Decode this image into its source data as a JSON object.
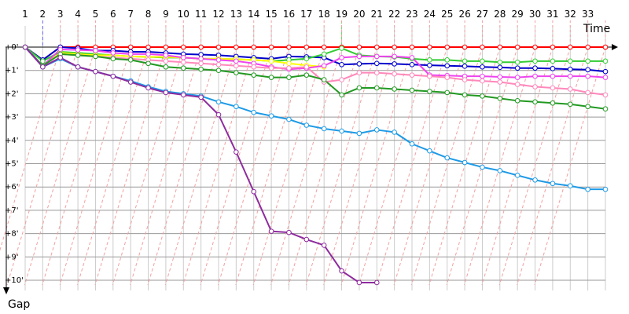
{
  "chart_data": {
    "type": "line",
    "x_axis_title": "Time",
    "y_axis_title": "Gap",
    "x_ticks": [
      "1",
      "2",
      "3",
      "4",
      "5",
      "6",
      "7",
      "8",
      "9",
      "10",
      "11",
      "12",
      "13",
      "14",
      "15",
      "16",
      "17",
      "18",
      "19",
      "20",
      "21",
      "22",
      "23",
      "24",
      "25",
      "26",
      "27",
      "28",
      "29",
      "30",
      "31",
      "32",
      "33"
    ],
    "y_ticks": [
      "+0'",
      "+1'",
      "+2'",
      "+3'",
      "+4'",
      "+5'",
      "+6'",
      "+7'",
      "+8'",
      "+9'",
      "+10'"
    ],
    "x_range": [
      1,
      34
    ],
    "y_range": [
      0,
      10
    ],
    "y_unit": "minutes",
    "grid": true,
    "series": [
      {
        "color": "#ff0000",
        "x": [
          1,
          2,
          3,
          4,
          5,
          6,
          7,
          8,
          9,
          10,
          11,
          12,
          13,
          14,
          15,
          16,
          17,
          18,
          19,
          20,
          21,
          22,
          23,
          24,
          25,
          26,
          27,
          28,
          29,
          30,
          31,
          32,
          33,
          34
        ],
        "y": [
          0,
          0.55,
          0,
          0,
          0,
          0,
          0,
          0,
          0,
          0,
          0,
          0,
          0,
          0,
          0,
          0,
          0,
          0,
          0,
          0,
          0,
          0,
          0,
          0,
          0,
          0,
          0,
          0,
          0,
          0,
          0,
          0,
          0,
          0
        ]
      },
      {
        "color": "#0000cc",
        "x": [
          1,
          2,
          3,
          4,
          5,
          6,
          7,
          8,
          9,
          10,
          11,
          12,
          13,
          14,
          15,
          16,
          17,
          18,
          19,
          20,
          21,
          22,
          23,
          24,
          25,
          26,
          27,
          28,
          29,
          30,
          31,
          32,
          33,
          34
        ],
        "y": [
          0,
          0.55,
          0,
          0.05,
          0.15,
          0.15,
          0.2,
          0.2,
          0.25,
          0.3,
          0.32,
          0.35,
          0.4,
          0.45,
          0.5,
          0.4,
          0.42,
          0.45,
          0.75,
          0.72,
          0.7,
          0.72,
          0.75,
          0.78,
          0.8,
          0.82,
          0.85,
          0.87,
          0.9,
          0.9,
          0.92,
          0.95,
          0.97,
          1.05
        ]
      },
      {
        "color": "#33cc33",
        "x": [
          1,
          2,
          3,
          4,
          5,
          6,
          7,
          8,
          9,
          10,
          11,
          12,
          13,
          14,
          15,
          16,
          17,
          18,
          19,
          20,
          21,
          22,
          23,
          24,
          25,
          26,
          27,
          28,
          29,
          30,
          31,
          32,
          33,
          34
        ],
        "y": [
          0,
          0.6,
          0.2,
          0.25,
          0.3,
          0.35,
          0.4,
          0.42,
          0.45,
          0.45,
          0.5,
          0.5,
          0.52,
          0.55,
          0.6,
          0.55,
          0.5,
          0.3,
          0.05,
          0.35,
          0.4,
          0.42,
          0.5,
          0.55,
          0.55,
          0.6,
          0.6,
          0.65,
          0.65,
          0.6,
          0.6,
          0.6,
          0.6,
          0.6
        ]
      },
      {
        "color": "#ffff00",
        "x": [
          1,
          2,
          3,
          4,
          5,
          6,
          7,
          8,
          9,
          10,
          11,
          12,
          13,
          14,
          15,
          16,
          17,
          18
        ],
        "y": [
          0,
          0.8,
          0.25,
          0.3,
          0.35,
          0.35,
          0.4,
          0.42,
          0.42,
          0.45,
          0.5,
          0.5,
          0.52,
          0.55,
          0.6,
          0.7,
          0.78,
          0.85
        ]
      },
      {
        "color": "#ee44ee",
        "x": [
          1,
          2,
          3,
          4,
          5,
          6,
          7,
          8,
          9,
          10,
          11,
          12,
          13,
          14,
          15,
          16,
          17,
          18,
          19,
          20,
          21,
          22,
          23,
          24,
          25,
          26,
          27,
          28,
          29,
          30,
          31,
          32,
          33,
          34
        ],
        "y": [
          0,
          0.8,
          0.1,
          0.12,
          0.15,
          0.25,
          0.3,
          0.3,
          0.35,
          0.45,
          0.5,
          0.55,
          0.6,
          0.7,
          0.85,
          0.95,
          0.9,
          0.8,
          0.45,
          0.4,
          0.4,
          0.4,
          0.45,
          1.2,
          1.22,
          1.25,
          1.25,
          1.28,
          1.3,
          1.25,
          1.25,
          1.25,
          1.25,
          1.3
        ]
      },
      {
        "color": "#ff88bb",
        "x": [
          1,
          2,
          3,
          4,
          5,
          6,
          7,
          8,
          9,
          10,
          11,
          12,
          13,
          14,
          15,
          16,
          17,
          18,
          19,
          20,
          21,
          22,
          23,
          24,
          25,
          26,
          27,
          28,
          29,
          30,
          31,
          32,
          33,
          34
        ],
        "y": [
          0,
          0.8,
          0.3,
          0.35,
          0.4,
          0.45,
          0.5,
          0.55,
          0.6,
          0.65,
          0.7,
          0.75,
          0.8,
          0.85,
          0.9,
          0.9,
          0.85,
          1.5,
          1.4,
          1.1,
          1.1,
          1.15,
          1.2,
          1.25,
          1.3,
          1.4,
          1.45,
          1.5,
          1.6,
          1.7,
          1.75,
          1.8,
          1.95,
          2.05
        ]
      },
      {
        "color": "#229922",
        "x": [
          1,
          2,
          3,
          4,
          5,
          6,
          7,
          8,
          9,
          10,
          11,
          12,
          13,
          14,
          15,
          16,
          17,
          18,
          19,
          20,
          21,
          22,
          23,
          24,
          25,
          26,
          27,
          28,
          29,
          30,
          31,
          32,
          33,
          34
        ],
        "y": [
          0,
          0.8,
          0.3,
          0.35,
          0.4,
          0.5,
          0.55,
          0.7,
          0.85,
          0.9,
          0.95,
          1.0,
          1.1,
          1.2,
          1.3,
          1.3,
          1.2,
          1.4,
          2.05,
          1.75,
          1.75,
          1.8,
          1.85,
          1.9,
          1.95,
          2.05,
          2.1,
          2.2,
          2.3,
          2.35,
          2.4,
          2.45,
          2.55,
          2.65
        ]
      },
      {
        "color": "#1e9ae6",
        "x": [
          1,
          2,
          3,
          4,
          5,
          6,
          7,
          8,
          9,
          10,
          11,
          12,
          13,
          14,
          15,
          16,
          17,
          18,
          19,
          20,
          21,
          22,
          23,
          24,
          25,
          26,
          27,
          28,
          29,
          30,
          31,
          32,
          33,
          34
        ],
        "y": [
          0,
          0.85,
          0.5,
          0.85,
          1.05,
          1.25,
          1.45,
          1.7,
          1.9,
          2.0,
          2.1,
          2.35,
          2.55,
          2.8,
          2.95,
          3.1,
          3.35,
          3.5,
          3.6,
          3.7,
          3.55,
          3.65,
          4.15,
          4.45,
          4.75,
          4.95,
          5.15,
          5.3,
          5.5,
          5.7,
          5.85,
          5.95,
          6.1,
          6.1
        ]
      },
      {
        "color": "#8e2b9e",
        "x": [
          1,
          2,
          3,
          4,
          5,
          6,
          7,
          8,
          9,
          10,
          11,
          12,
          13,
          14,
          15,
          16,
          17,
          18,
          19,
          20,
          21
        ],
        "y": [
          0,
          0.85,
          0.45,
          0.85,
          1.05,
          1.25,
          1.5,
          1.75,
          1.95,
          2.05,
          2.15,
          2.9,
          4.5,
          6.2,
          7.9,
          7.95,
          8.25,
          8.5,
          9.6,
          10.1,
          10.1
        ]
      }
    ],
    "vertical_guides": [
      {
        "x": 2,
        "color": "#6666ff"
      },
      {
        "x": 19,
        "color": "#66dd66"
      }
    ]
  }
}
